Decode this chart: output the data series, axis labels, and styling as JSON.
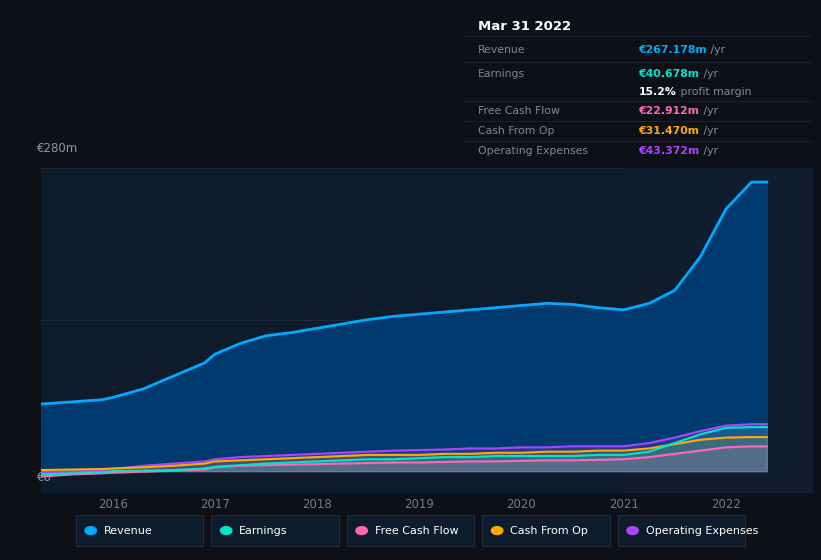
{
  "background_color": "#0d1117",
  "plot_bg_color": "#0d1b2a",
  "highlight_color": "#111d2e",
  "grid_color": "#1e2d3d",
  "ylabel_top": "€280m",
  "ylabel_zero": "€0",
  "ylim": [
    -20,
    280
  ],
  "xlim": [
    2015.3,
    2022.85
  ],
  "x_ticks": [
    2016,
    2017,
    2018,
    2019,
    2020,
    2021,
    2022
  ],
  "highlight_start": 2021.0,
  "highlight_end": 2022.85,
  "revenue": {
    "label": "Revenue",
    "color": "#00aaff",
    "fill_color": "#003a6e",
    "data_x": [
      2015.3,
      2015.6,
      2015.9,
      2016.0,
      2016.3,
      2016.6,
      2016.9,
      2017.0,
      2017.25,
      2017.5,
      2017.75,
      2018.0,
      2018.25,
      2018.5,
      2018.75,
      2019.0,
      2019.25,
      2019.5,
      2019.75,
      2020.0,
      2020.25,
      2020.5,
      2020.75,
      2021.0,
      2021.25,
      2021.5,
      2021.75,
      2022.0,
      2022.25,
      2022.4
    ],
    "data_y": [
      62,
      64,
      66,
      68,
      76,
      88,
      100,
      108,
      118,
      125,
      128,
      132,
      136,
      140,
      143,
      145,
      147,
      149,
      151,
      153,
      155,
      154,
      151,
      149,
      155,
      167,
      198,
      242,
      267,
      267
    ]
  },
  "earnings": {
    "label": "Earnings",
    "color": "#00e5cc",
    "data_x": [
      2015.3,
      2015.6,
      2015.9,
      2016.0,
      2016.3,
      2016.6,
      2016.9,
      2017.0,
      2017.25,
      2017.5,
      2017.75,
      2018.0,
      2018.25,
      2018.5,
      2018.75,
      2019.0,
      2019.25,
      2019.5,
      2019.75,
      2020.0,
      2020.25,
      2020.5,
      2020.75,
      2021.0,
      2021.25,
      2021.5,
      2021.75,
      2022.0,
      2022.25,
      2022.4
    ],
    "data_y": [
      -3,
      -2,
      -1,
      0,
      0.5,
      1,
      2.5,
      4,
      5.5,
      7,
      8,
      9,
      10,
      11,
      11,
      12,
      13,
      13,
      14,
      14,
      14,
      14,
      15,
      15,
      18,
      26,
      34,
      40,
      40.678,
      40.678
    ]
  },
  "free_cash_flow": {
    "label": "Free Cash Flow",
    "color": "#ff69b4",
    "data_x": [
      2015.3,
      2015.6,
      2015.9,
      2016.0,
      2016.3,
      2016.6,
      2016.9,
      2017.0,
      2017.25,
      2017.5,
      2017.75,
      2018.0,
      2018.25,
      2018.5,
      2018.75,
      2019.0,
      2019.25,
      2019.5,
      2019.75,
      2020.0,
      2020.25,
      2020.5,
      2020.75,
      2021.0,
      2021.25,
      2021.5,
      2021.75,
      2022.0,
      2022.25,
      2022.4
    ],
    "data_y": [
      -5,
      -3,
      -2,
      -1.5,
      -0.5,
      0.5,
      1.5,
      3.5,
      5,
      5.5,
      6,
      6.5,
      7,
      7.5,
      8,
      8,
      8.5,
      9,
      9,
      9.5,
      10,
      10,
      10.5,
      11,
      13,
      16,
      19,
      22,
      22.912,
      22.912
    ]
  },
  "cash_from_op": {
    "label": "Cash From Op",
    "color": "#ffaa00",
    "data_x": [
      2015.3,
      2015.6,
      2015.9,
      2016.0,
      2016.3,
      2016.6,
      2016.9,
      2017.0,
      2017.25,
      2017.5,
      2017.75,
      2018.0,
      2018.25,
      2018.5,
      2018.75,
      2019.0,
      2019.25,
      2019.5,
      2019.75,
      2020.0,
      2020.25,
      2020.5,
      2020.75,
      2021.0,
      2021.25,
      2021.5,
      2021.75,
      2022.0,
      2022.25,
      2022.4
    ],
    "data_y": [
      1,
      1.5,
      2,
      2.5,
      3.5,
      5,
      7,
      9,
      10,
      11,
      12,
      13,
      14,
      15,
      15,
      15,
      16,
      16,
      17,
      17,
      18,
      18,
      19,
      19,
      21,
      25,
      29,
      31,
      31.47,
      31.47
    ]
  },
  "operating_expenses": {
    "label": "Operating Expenses",
    "color": "#aa44ff",
    "data_x": [
      2015.3,
      2015.6,
      2015.9,
      2016.0,
      2016.3,
      2016.6,
      2016.9,
      2017.0,
      2017.25,
      2017.5,
      2017.75,
      2018.0,
      2018.25,
      2018.5,
      2018.75,
      2019.0,
      2019.25,
      2019.5,
      2019.75,
      2020.0,
      2020.25,
      2020.5,
      2020.75,
      2021.0,
      2021.25,
      2021.5,
      2021.75,
      2022.0,
      2022.25,
      2022.4
    ],
    "data_y": [
      -2,
      0,
      1,
      2,
      5,
      7,
      9,
      11,
      13,
      14,
      15,
      16,
      17,
      18,
      19,
      19.5,
      20,
      21,
      21,
      22,
      22,
      23,
      23,
      23,
      26,
      31,
      37,
      42,
      43.372,
      43.372
    ]
  },
  "info_box": {
    "date": "Mar 31 2022",
    "revenue_label": "Revenue",
    "revenue_val": "€267.178m",
    "revenue_color": "#00aaff",
    "earnings_label": "Earnings",
    "earnings_val": "€40.678m",
    "earnings_color": "#00e5cc",
    "profit_pct": "15.2%",
    "profit_text": " profit margin",
    "fcf_label": "Free Cash Flow",
    "fcf_val": "€22.912m",
    "fcf_color": "#ff69b4",
    "cash_op_label": "Cash From Op",
    "cash_op_val": "€31.470m",
    "cash_op_color": "#ffaa00",
    "op_exp_label": "Operating Expenses",
    "op_exp_val": "€43.372m",
    "op_exp_color": "#aa44ff",
    "yr_label": " /yr",
    "box_bg": "#080c10",
    "border_color": "#1a2535",
    "label_color": "#7a8a9a",
    "date_color": "#ffffff",
    "yr_color": "#7a8a9a",
    "profit_val_color": "#ffffff"
  },
  "legend_items": [
    {
      "label": "Revenue",
      "color": "#00aaff"
    },
    {
      "label": "Earnings",
      "color": "#00e5cc"
    },
    {
      "label": "Free Cash Flow",
      "color": "#ff69b4"
    },
    {
      "label": "Cash From Op",
      "color": "#ffaa00"
    },
    {
      "label": "Operating Expenses",
      "color": "#aa44ff"
    }
  ]
}
